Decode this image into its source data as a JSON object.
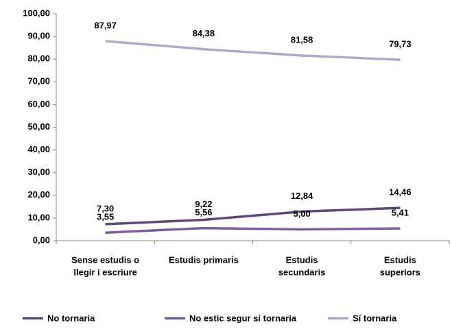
{
  "chart_data": {
    "type": "line",
    "categories": [
      [
        "Sense estudis o",
        "llegir i escriure"
      ],
      [
        "Estudis primaris"
      ],
      [
        "Estudis",
        "secundaris"
      ],
      [
        "Estudis",
        "superiors"
      ]
    ],
    "series": [
      {
        "name": "No tornaria",
        "color": "#5e4878",
        "values": [
          7.3,
          9.22,
          12.84,
          14.46
        ],
        "value_labels": [
          "7,30",
          "9,22",
          "12,84",
          "14,46"
        ]
      },
      {
        "name": "No estic segur si tornaria",
        "color": "#7a5f9b",
        "values": [
          3.55,
          5.56,
          5.0,
          5.41
        ],
        "value_labels": [
          "3,55",
          "5,56",
          "5,00",
          "5,41"
        ]
      },
      {
        "name": "Sí tornaria",
        "color": "#b2a7c8",
        "values": [
          87.97,
          84.38,
          81.58,
          79.73
        ],
        "value_labels": [
          "87,97",
          "84,38",
          "81,58",
          "79,73"
        ]
      }
    ],
    "ylim": [
      0,
      100
    ],
    "yticks": [
      {
        "value": 0,
        "label": "0,00"
      },
      {
        "value": 10,
        "label": "10,00"
      },
      {
        "value": 20,
        "label": "20,00"
      },
      {
        "value": 30,
        "label": "30,00"
      },
      {
        "value": 40,
        "label": "40,00"
      },
      {
        "value": 50,
        "label": "50,00"
      },
      {
        "value": 60,
        "label": "60,00"
      },
      {
        "value": 70,
        "label": "70,00"
      },
      {
        "value": 80,
        "label": "80,00"
      },
      {
        "value": 90,
        "label": "90,00"
      },
      {
        "value": 100,
        "label": "100,00"
      }
    ],
    "legend": "bottom"
  }
}
